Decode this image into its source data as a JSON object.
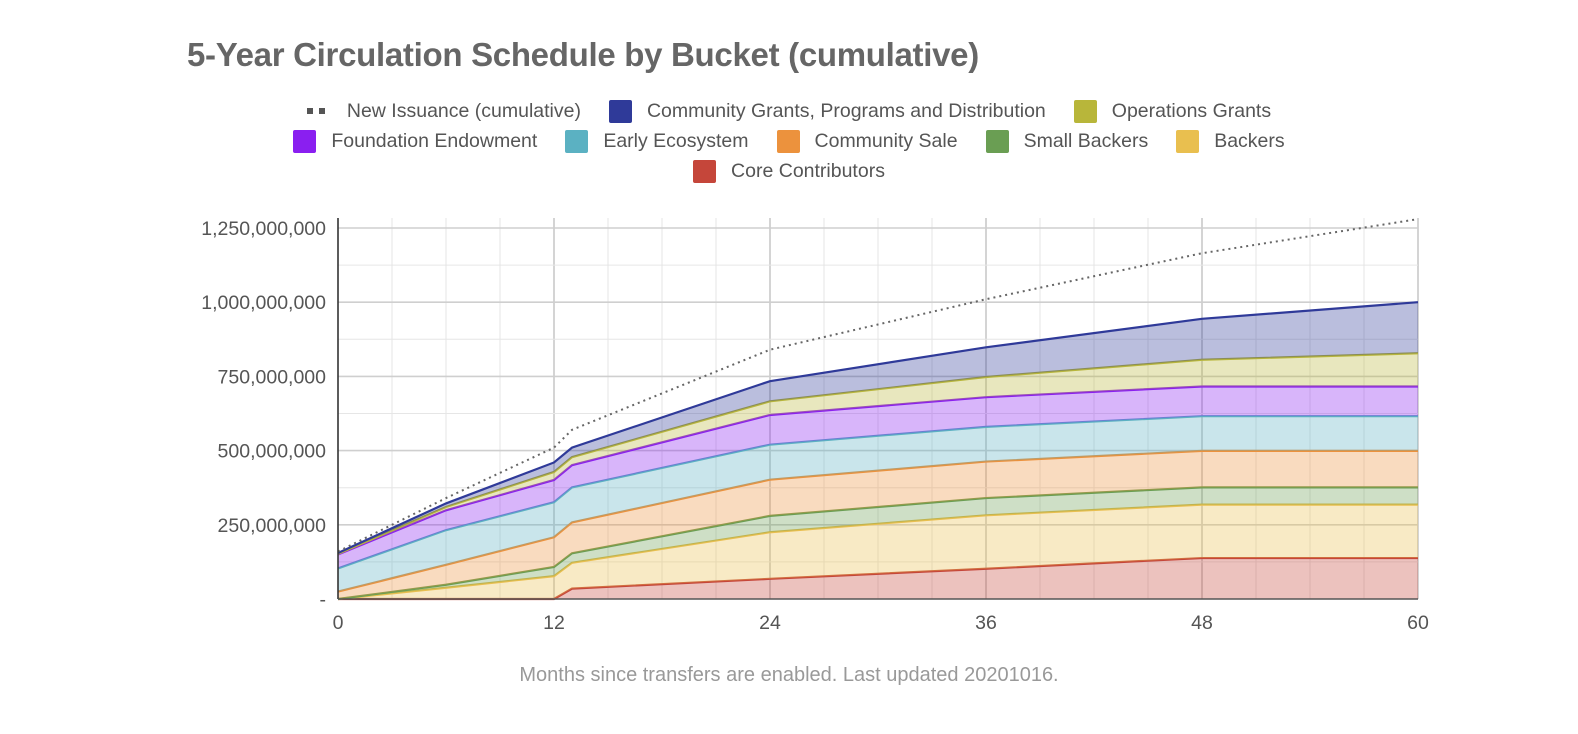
{
  "chart_data": {
    "type": "area",
    "stacked": true,
    "title": "5-Year Circulation Schedule by Bucket (cumulative)",
    "xlabel": "Months since transfers are enabled. Last updated 20201016.",
    "ylabel": "",
    "x": [
      0,
      6,
      12,
      13,
      24,
      36,
      48,
      60
    ],
    "xlim": [
      0,
      60
    ],
    "ylim": [
      0,
      1250000000
    ],
    "x_ticks": [
      "0",
      "12",
      "24",
      "36",
      "48",
      "60"
    ],
    "y_ticks": [
      "-",
      "250,000,000",
      "500,000,000",
      "750,000,000",
      "1,000,000,000",
      "1,250,000,000"
    ],
    "grid": true,
    "legend_position": "top",
    "series": [
      {
        "name": "Core Contributors",
        "color": "#c5463a",
        "values": [
          0,
          0,
          0,
          35000000,
          68000000,
          102000000,
          138000000,
          138000000
        ]
      },
      {
        "name": "Backers",
        "color": "#e9bf4f",
        "values": [
          0,
          38000000,
          77000000,
          87000000,
          157000000,
          180000000,
          180000000,
          180000000
        ]
      },
      {
        "name": "Small Backers",
        "color": "#6a9e53",
        "values": [
          0,
          10000000,
          31000000,
          32000000,
          55000000,
          58000000,
          58000000,
          58000000
        ]
      },
      {
        "name": "Community Sale",
        "color": "#ec923d",
        "values": [
          25000000,
          67000000,
          100000000,
          104000000,
          122000000,
          123000000,
          123000000,
          123000000
        ]
      },
      {
        "name": "Early Ecosystem",
        "color": "#5bb1c2",
        "values": [
          78000000,
          117000000,
          118000000,
          118000000,
          118000000,
          117000000,
          117000000,
          117000000
        ]
      },
      {
        "name": "Foundation Endowment",
        "color": "#8a1ff0",
        "values": [
          47000000,
          67000000,
          75000000,
          75000000,
          100000000,
          100000000,
          100000000,
          100000000
        ]
      },
      {
        "name": "Operations Grants",
        "color": "#b8b63a",
        "values": [
          2000000,
          11000000,
          27000000,
          27000000,
          46000000,
          68000000,
          90000000,
          112000000
        ]
      },
      {
        "name": "Community Grants, Programs and Distribution",
        "color": "#2f3a99",
        "values": [
          3000000,
          12000000,
          32000000,
          32000000,
          68000000,
          100000000,
          138000000,
          172000000
        ]
      }
    ],
    "line_series": {
      "name": "New Issuance (cumulative)",
      "color": "#666666",
      "style": "dotted",
      "x": [
        0,
        6,
        12,
        13,
        24,
        36,
        48,
        60
      ],
      "values": [
        160000000,
        340000000,
        510000000,
        570000000,
        840000000,
        1010000000,
        1165000000,
        1280000000
      ]
    }
  },
  "legend": {
    "rows": [
      [
        {
          "label": "New Issuance (cumulative)",
          "kind": "dots",
          "color": "#555555"
        },
        {
          "label": "Community Grants, Programs and Distribution",
          "kind": "box",
          "color": "#2f3a99"
        },
        {
          "label": "Operations Grants",
          "kind": "box",
          "color": "#b8b63a"
        }
      ],
      [
        {
          "label": "Foundation Endowment",
          "kind": "box",
          "color": "#8a1ff0"
        },
        {
          "label": "Early Ecosystem",
          "kind": "box",
          "color": "#5bb1c2"
        },
        {
          "label": "Community Sale",
          "kind": "box",
          "color": "#ec923d"
        },
        {
          "label": "Small Backers",
          "kind": "box",
          "color": "#6a9e53"
        },
        {
          "label": "Backers",
          "kind": "box",
          "color": "#e9bf4f"
        }
      ],
      [
        {
          "label": "Core Contributors",
          "kind": "box",
          "color": "#c5463a"
        }
      ]
    ]
  }
}
